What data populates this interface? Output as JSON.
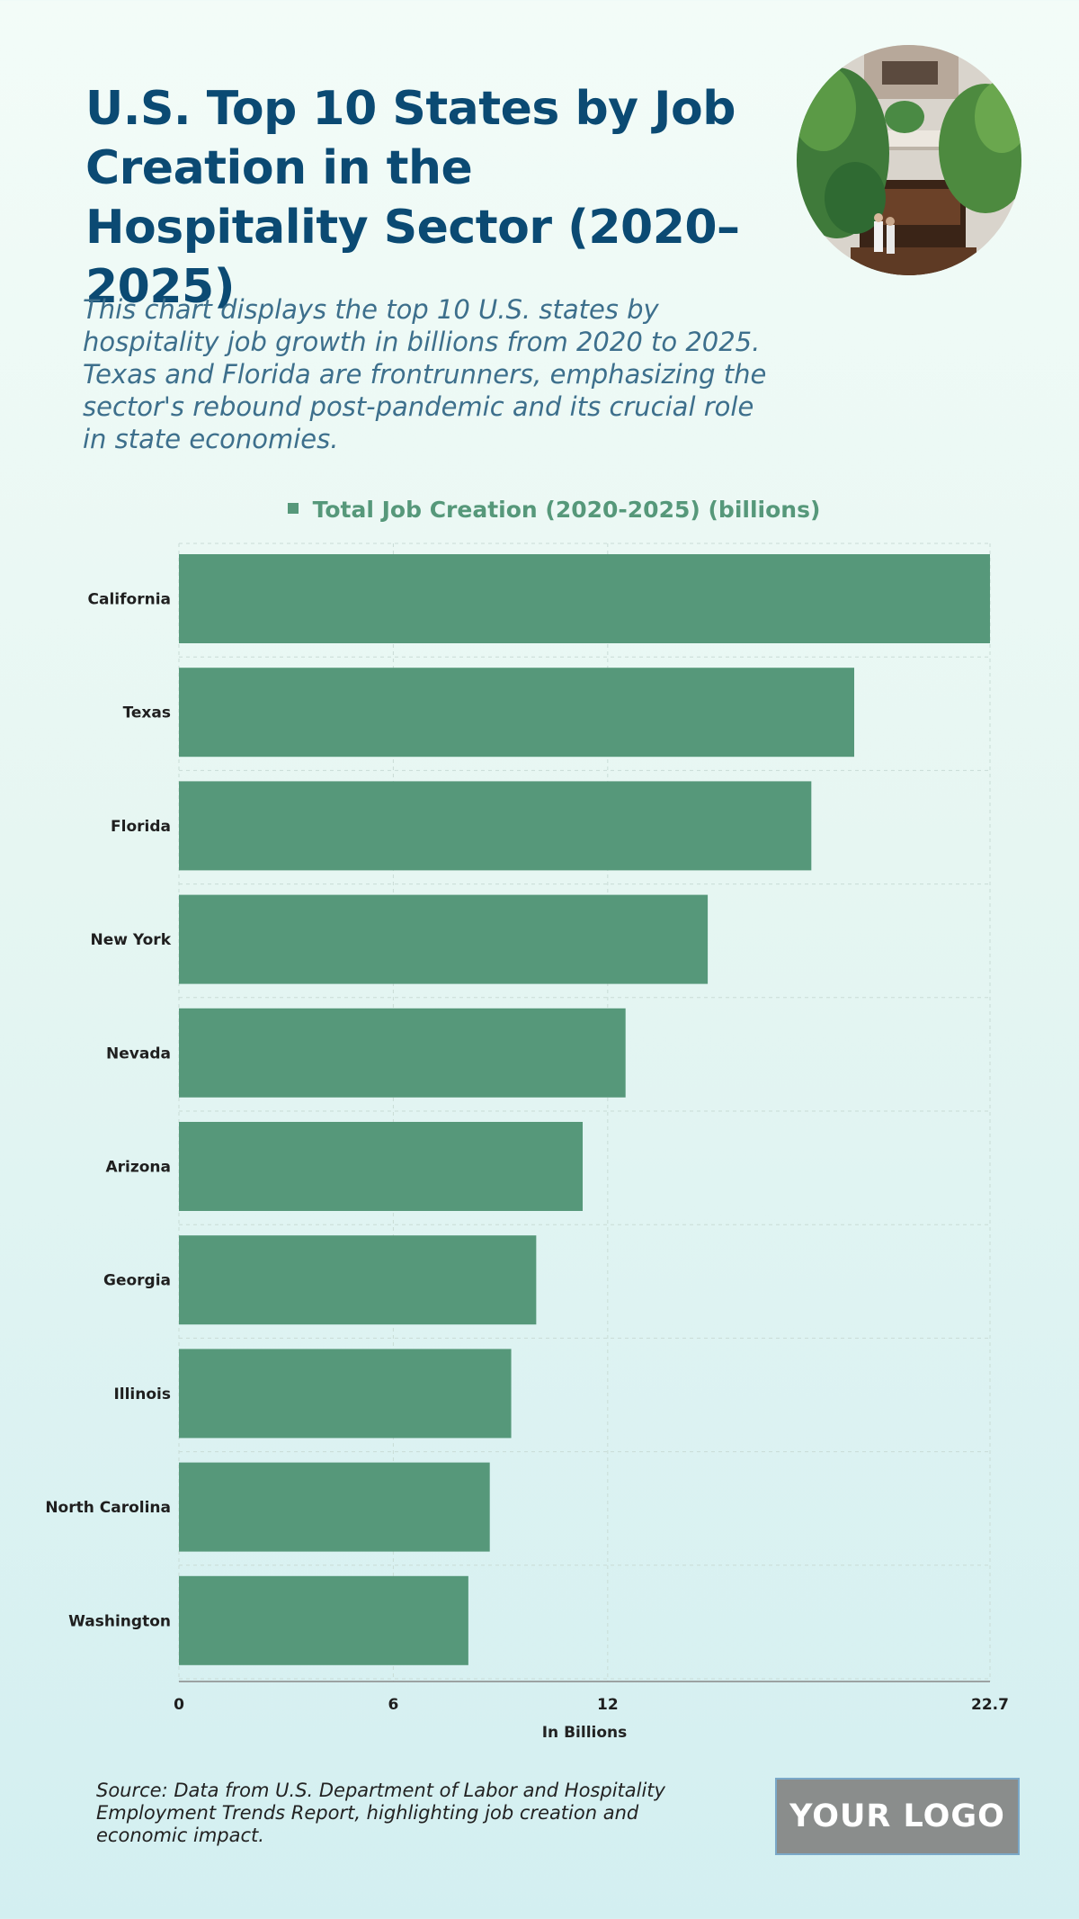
{
  "header": {
    "title": "U.S. Top 10 States by Job Creation in the Hospitality Sector (2020–2025)",
    "subtitle": "This chart displays the top 10 U.S. states by hospitality job growth in billions from 2020 to 2025. Texas and Florida are frontrunners, emphasizing the sector's rebound post-pandemic and its crucial role in state economies."
  },
  "legend": {
    "label": "Total Job Creation (2020-2025) (billions)"
  },
  "chart_data": {
    "type": "bar",
    "orientation": "horizontal",
    "categories": [
      "California",
      "Texas",
      "Florida",
      "New York",
      "Nevada",
      "Arizona",
      "Georgia",
      "Illinois",
      "North Carolina",
      "Washington"
    ],
    "series": [
      {
        "name": "Total Job Creation (2020-2025) (billions)",
        "values": [
          22.7,
          18.9,
          17.7,
          14.8,
          12.5,
          11.3,
          10.0,
          9.3,
          8.7,
          8.1
        ]
      }
    ],
    "xticks": [
      0,
      6,
      12,
      22.7
    ],
    "xlim": [
      0,
      22.7
    ],
    "xlabel": "In Billions",
    "ylabel": "",
    "grid": true,
    "legend_position": "top",
    "bar_color": "#56987a"
  },
  "footer": {
    "source": "Source: Data from U.S. Department of Labor and Hospitality Employment Trends Report, highlighting job creation and economic impact.",
    "logo_text": "YOUR LOGO"
  },
  "colors": {
    "title": "#0b4a73",
    "subtitle": "#3d6f8c",
    "bar": "#56987a",
    "logo_bg": "#8a8d8c"
  }
}
